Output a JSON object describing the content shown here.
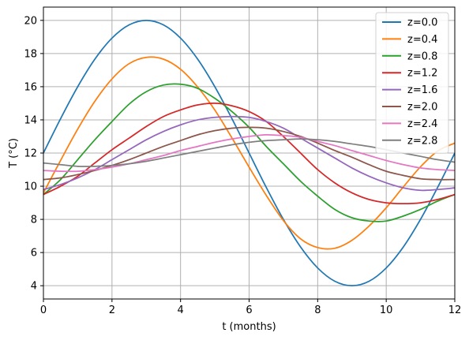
{
  "chart_data": {
    "type": "line",
    "title": "",
    "xlabel": "t (months)",
    "ylabel": "T (°C)",
    "xlim": [
      0,
      12
    ],
    "ylim": [
      3.2,
      20.8
    ],
    "xticks": [
      0,
      2,
      4,
      6,
      8,
      10,
      12
    ],
    "yticks": [
      4,
      6,
      8,
      10,
      12,
      14,
      16,
      18,
      20
    ],
    "xtick_labels": [
      "0",
      "2",
      "4",
      "6",
      "8",
      "10",
      "12"
    ],
    "ytick_labels": [
      "4",
      "6",
      "8",
      "10",
      "12",
      "14",
      "16",
      "18",
      "20"
    ],
    "grid": true,
    "legend_position": "top-right",
    "x": [
      0,
      0.5,
      1,
      1.5,
      2,
      2.5,
      3,
      3.5,
      4,
      4.5,
      5,
      5.5,
      6,
      6.5,
      7,
      7.5,
      8,
      8.5,
      9,
      9.5,
      10,
      10.5,
      11,
      11.5,
      12
    ],
    "series": [
      {
        "name": "z=0.0",
        "color": "#1f77b4",
        "values": [
          12.0,
          14.07,
          16.0,
          17.66,
          18.93,
          19.73,
          20.0,
          19.73,
          18.93,
          17.66,
          16.0,
          14.07,
          12.0,
          9.93,
          8.0,
          6.34,
          5.07,
          4.27,
          4.0,
          4.27,
          5.07,
          6.34,
          8.0,
          9.93,
          12.0
        ]
      },
      {
        "name": "z=0.4",
        "color": "#ff7f0e",
        "values": [
          9.6,
          11.55,
          13.44,
          15.12,
          16.47,
          17.39,
          17.77,
          17.66,
          17.05,
          15.98,
          14.59,
          12.91,
          11.15,
          9.45,
          7.93,
          6.83,
          6.3,
          6.26,
          6.74,
          7.6,
          8.7,
          9.96,
          11.17,
          12.12,
          12.6
        ]
      },
      {
        "name": "z=0.8",
        "color": "#2ca02c",
        "values": [
          9.5,
          10.4,
          11.6,
          12.8,
          13.9,
          14.95,
          15.7,
          16.1,
          16.15,
          15.9,
          15.3,
          14.5,
          13.55,
          12.4,
          11.35,
          10.3,
          9.4,
          8.6,
          8.1,
          7.9,
          7.9,
          8.2,
          8.6,
          9.1,
          9.5
        ]
      },
      {
        "name": "z=1.2",
        "color": "#d62728",
        "values": [
          9.5,
          10.0,
          10.6,
          11.4,
          12.2,
          12.9,
          13.6,
          14.2,
          14.6,
          14.9,
          15.0,
          14.85,
          14.5,
          13.9,
          13.0,
          12.0,
          11.0,
          10.2,
          9.6,
          9.2,
          9.0,
          8.95,
          9.0,
          9.2,
          9.5
        ]
      },
      {
        "name": "z=1.6",
        "color": "#9467bd",
        "values": [
          9.8,
          10.1,
          10.5,
          11.0,
          11.6,
          12.2,
          12.8,
          13.3,
          13.7,
          14.0,
          14.15,
          14.2,
          14.15,
          13.9,
          13.5,
          12.9,
          12.3,
          11.7,
          11.1,
          10.6,
          10.2,
          9.9,
          9.75,
          9.8,
          9.9
        ]
      },
      {
        "name": "z=2.0",
        "color": "#8c564b",
        "values": [
          10.4,
          10.5,
          10.7,
          10.95,
          11.25,
          11.6,
          12.0,
          12.4,
          12.75,
          13.1,
          13.35,
          13.5,
          13.55,
          13.5,
          13.3,
          13.0,
          12.6,
          12.15,
          11.75,
          11.3,
          10.9,
          10.65,
          10.45,
          10.4,
          10.4
        ]
      },
      {
        "name": "z=2.4",
        "color": "#e377c2",
        "values": [
          10.95,
          10.9,
          10.9,
          11.0,
          11.15,
          11.35,
          11.6,
          11.85,
          12.15,
          12.4,
          12.65,
          12.85,
          13.0,
          13.1,
          13.05,
          12.95,
          12.7,
          12.45,
          12.15,
          11.85,
          11.55,
          11.3,
          11.1,
          11.0,
          10.95
        ]
      },
      {
        "name": "z=2.8",
        "color": "#7f7f7f",
        "values": [
          11.4,
          11.3,
          11.2,
          11.2,
          11.25,
          11.35,
          11.5,
          11.7,
          11.9,
          12.1,
          12.3,
          12.5,
          12.65,
          12.75,
          12.8,
          12.85,
          12.8,
          12.7,
          12.55,
          12.4,
          12.2,
          12.0,
          11.8,
          11.6,
          11.45
        ]
      }
    ]
  }
}
